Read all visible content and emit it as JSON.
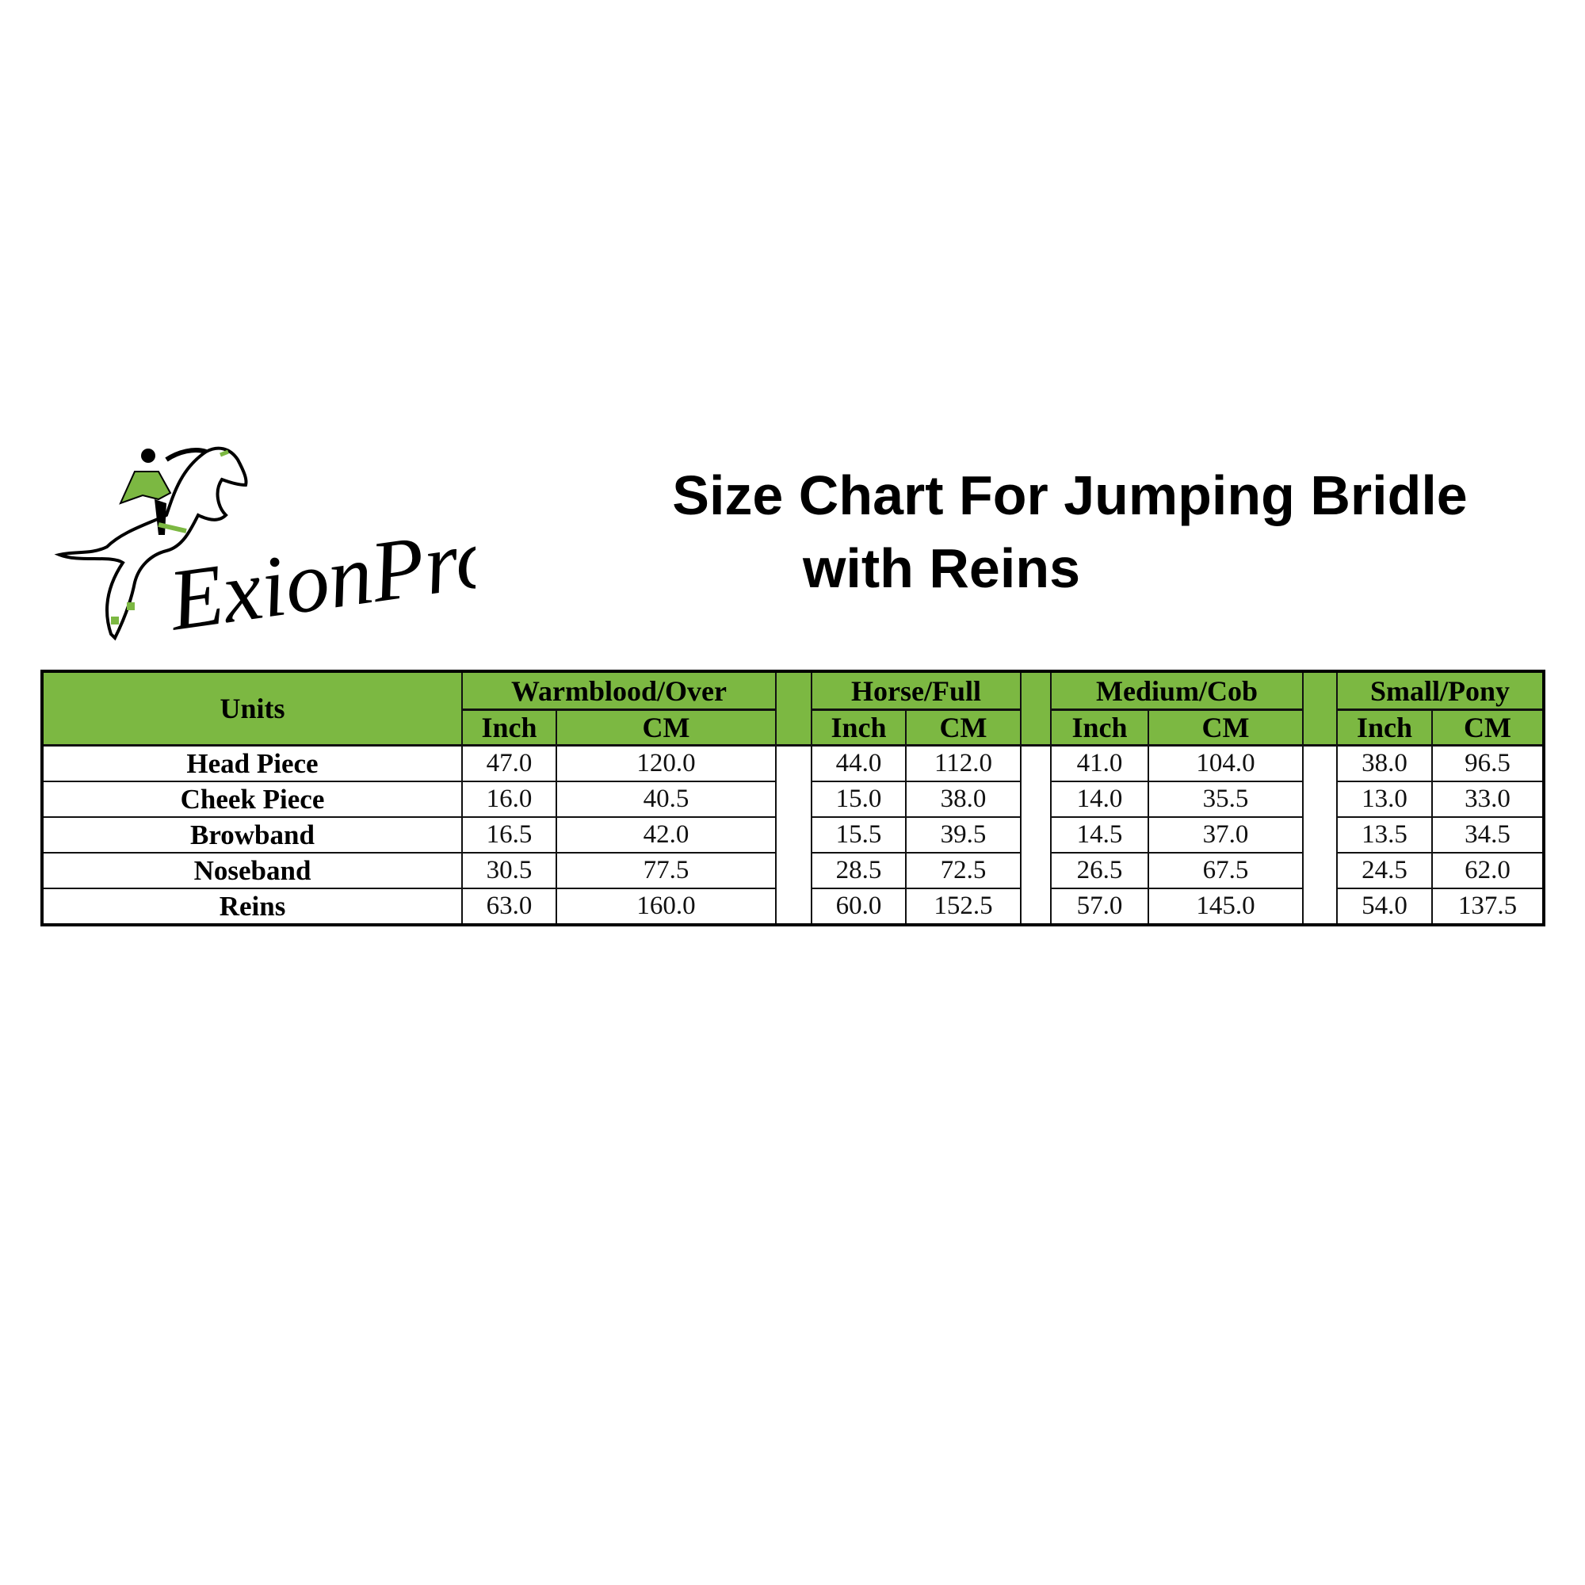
{
  "logo": {
    "text": "ExionPro",
    "accent_color": "#7cb842"
  },
  "title": {
    "line1": "Size Chart For Jumping Bridle",
    "line2": "with Reins"
  },
  "table": {
    "units_header": "Units",
    "header_color": "#7cb842",
    "groups": [
      {
        "name": "Warmblood/Over",
        "sub": [
          "Inch",
          "CM"
        ]
      },
      {
        "name": "Horse/Full",
        "sub": [
          "Inch",
          "CM"
        ]
      },
      {
        "name": "Medium/Cob",
        "sub": [
          "Inch",
          "CM"
        ]
      },
      {
        "name": "Small/Pony",
        "sub": [
          "Inch",
          "CM"
        ]
      }
    ],
    "rows": [
      {
        "label": "Head Piece",
        "values": [
          "47.0",
          "120.0",
          "44.0",
          "112.0",
          "41.0",
          "104.0",
          "38.0",
          "96.5"
        ]
      },
      {
        "label": "Cheek Piece",
        "values": [
          "16.0",
          "40.5",
          "15.0",
          "38.0",
          "14.0",
          "35.5",
          "13.0",
          "33.0"
        ]
      },
      {
        "label": "Browband",
        "values": [
          "16.5",
          "42.0",
          "15.5",
          "39.5",
          "14.5",
          "37.0",
          "13.5",
          "34.5"
        ]
      },
      {
        "label": "Noseband",
        "values": [
          "30.5",
          "77.5",
          "28.5",
          "72.5",
          "26.5",
          "67.5",
          "24.5",
          "62.0"
        ]
      },
      {
        "label": "Reins",
        "values": [
          "63.0",
          "160.0",
          "60.0",
          "152.5",
          "57.0",
          "145.0",
          "54.0",
          "137.5"
        ]
      }
    ]
  }
}
